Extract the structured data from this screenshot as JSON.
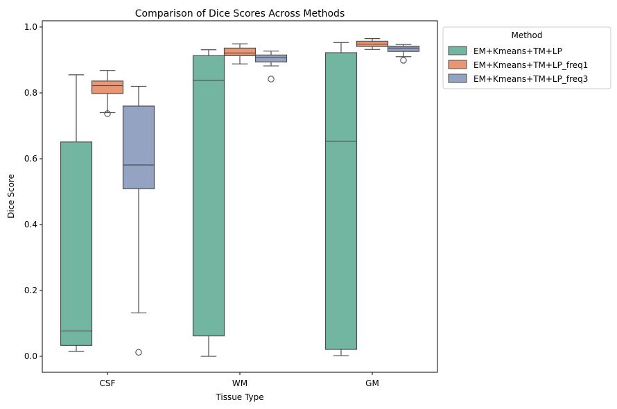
{
  "chart_data": {
    "type": "box",
    "title": "Comparison of Dice Scores Across Methods",
    "xlabel": "Tissue Type",
    "ylabel": "Dice Score",
    "ylim": [
      -0.05,
      1.0
    ],
    "yticks": [
      "0.0",
      "0.2",
      "0.4",
      "0.6",
      "0.8",
      "1.0"
    ],
    "categories": [
      "CSF",
      "WM",
      "GM"
    ],
    "legend": {
      "title": "Method",
      "placement": "outside-top-right"
    },
    "series": [
      {
        "name": "EM+Kmeans+TM+LP",
        "color": "#72b6a1",
        "boxes": [
          {
            "whisker_low": 0.015,
            "q1": 0.033,
            "median": 0.077,
            "q3": 0.651,
            "whisker_high": 0.855,
            "outliers": []
          },
          {
            "whisker_low": 0.0,
            "q1": 0.062,
            "median": 0.838,
            "q3": 0.913,
            "whisker_high": 0.931,
            "outliers": []
          },
          {
            "whisker_low": 0.002,
            "q1": 0.021,
            "median": 0.653,
            "q3": 0.922,
            "whisker_high": 0.953,
            "outliers": []
          }
        ]
      },
      {
        "name": "EM+Kmeans+TM+LP_freq1",
        "color": "#e99675",
        "boxes": [
          {
            "whisker_low": 0.74,
            "q1": 0.798,
            "median": 0.822,
            "q3": 0.836,
            "whisker_high": 0.868,
            "outliers": [
              0.737
            ]
          },
          {
            "whisker_low": 0.888,
            "q1": 0.913,
            "median": 0.921,
            "q3": 0.936,
            "whisker_high": 0.949,
            "outliers": []
          },
          {
            "whisker_low": 0.932,
            "q1": 0.941,
            "median": 0.948,
            "q3": 0.957,
            "whisker_high": 0.965,
            "outliers": []
          }
        ]
      },
      {
        "name": "EM+Kmeans+TM+LP_freq3",
        "color": "#95a3c3",
        "boxes": [
          {
            "whisker_low": 0.132,
            "q1": 0.509,
            "median": 0.581,
            "q3": 0.76,
            "whisker_high": 0.82,
            "outliers": [
              0.012
            ]
          },
          {
            "whisker_low": 0.882,
            "q1": 0.894,
            "median": 0.907,
            "q3": 0.915,
            "whisker_high": 0.927,
            "outliers": [
              0.842
            ]
          },
          {
            "whisker_low": 0.91,
            "q1": 0.926,
            "median": 0.936,
            "q3": 0.942,
            "whisker_high": 0.947,
            "outliers": [
              0.899
            ]
          }
        ]
      }
    ]
  }
}
